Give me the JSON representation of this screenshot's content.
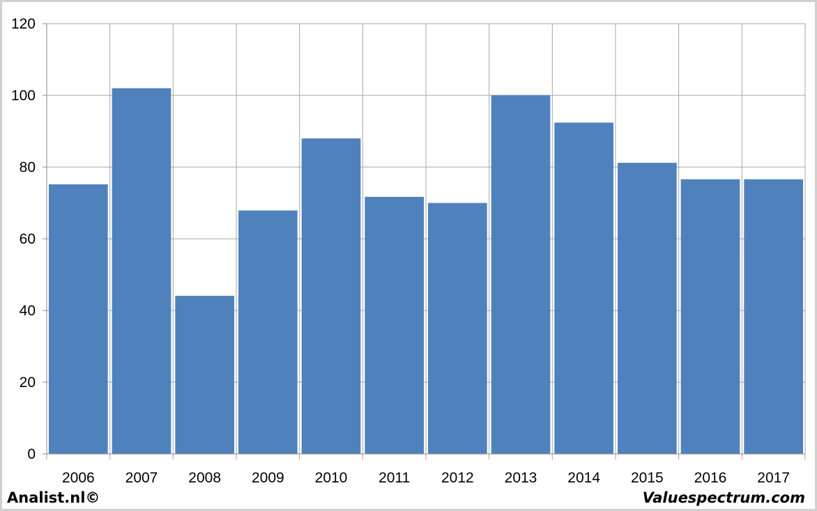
{
  "chart_data": {
    "type": "bar",
    "title": "",
    "xlabel": "",
    "ylabel": "",
    "categories": [
      "2006",
      "2007",
      "2008",
      "2009",
      "2010",
      "2011",
      "2012",
      "2013",
      "2014",
      "2015",
      "2016",
      "2017"
    ],
    "values": [
      75.2,
      102,
      44.1,
      67.9,
      88,
      71.7,
      70,
      100.1,
      92.4,
      81.2,
      76.6,
      76.6
    ],
    "ylim": [
      0,
      120
    ],
    "yticks": [
      "0",
      "20",
      "40",
      "60",
      "80",
      "100",
      "120"
    ],
    "grid": true,
    "legend": "none",
    "bar_color": "#4f81bd",
    "grid_color": "#a6a6a6"
  },
  "footer": {
    "left": "Analist.nl©",
    "right": "Valuespectrum.com"
  }
}
